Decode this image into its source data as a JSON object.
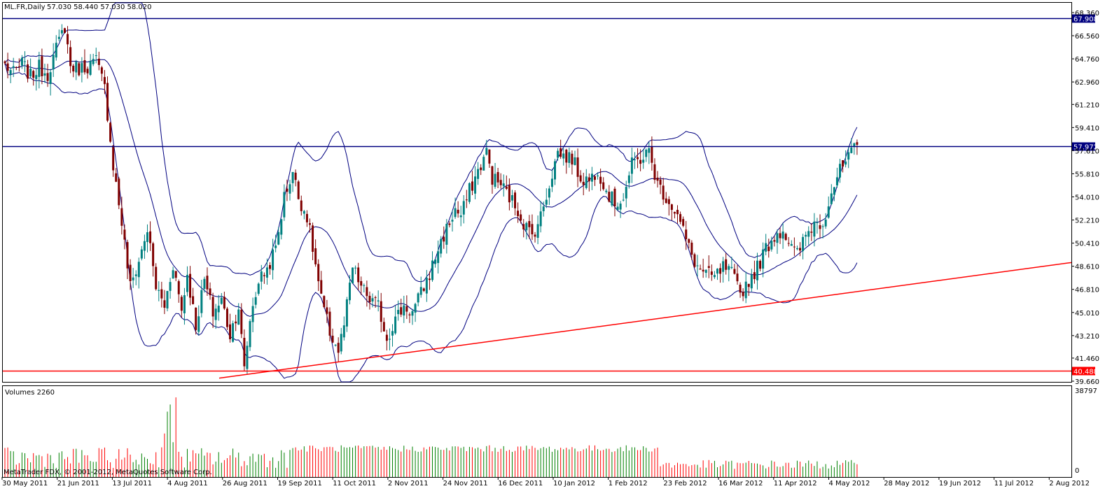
{
  "chart_data": {
    "type": "candlestick",
    "platform": "MetaTrader 4",
    "symbol_title": "ML.FR,Daily",
    "ohlc_readout": "57.030 58.440 57.030 58.020",
    "volume_title": "Volumes 2260",
    "copyright": "MetaTrader FDX, © 2001-2012, MetaQuotes Software Corp.",
    "price_axis": {
      "range": [
        39.66,
        69.5
      ],
      "ticks": [
        "68.360",
        "66.560",
        "64.760",
        "62.960",
        "61.210",
        "59.410",
        "57.610",
        "55.810",
        "54.010",
        "52.210",
        "50.410",
        "48.610",
        "46.810",
        "45.010",
        "43.210",
        "41.460",
        "39.660"
      ]
    },
    "volume_axis": {
      "range": [
        0,
        38797
      ],
      "ticks": [
        "38797",
        "0"
      ]
    },
    "date_axis": {
      "labels": [
        "30 May 2011",
        "21 Jun 2011",
        "13 Jul 2011",
        "4 Aug 2011",
        "26 Aug 2011",
        "19 Sep 2011",
        "11 Oct 2011",
        "2 Nov 2011",
        "24 Nov 2011",
        "16 Dec 2011",
        "10 Jan 2012",
        "1 Feb 2012",
        "23 Feb 2012",
        "16 Mar 2012",
        "11 Apr 2012",
        "4 May 2012",
        "28 May 2012",
        "19 Jun 2012",
        "11 Jul 2012",
        "2 Aug 2012"
      ]
    },
    "horizontal_levels": [
      {
        "value": 67.908,
        "label": "67.908",
        "color": "#000080"
      },
      {
        "value": 57.972,
        "label": "57.972",
        "color": "#000080"
      },
      {
        "value": 40.488,
        "label": "40.488",
        "color": "#ff0000"
      }
    ],
    "trendline": {
      "color": "#ff0000",
      "from": {
        "date": "19 Sep 2011",
        "price": 39.9
      },
      "to": {
        "date": "end",
        "price": 48.9
      }
    },
    "indicator": "Bollinger Bands",
    "colors": {
      "bull": "#008080",
      "bear": "#800000",
      "band": "#000080",
      "vol_up": "#008000",
      "vol_down": "#ff0000"
    },
    "close_anchors": [
      [
        0,
        64.3
      ],
      [
        8,
        63.6
      ],
      [
        16,
        64.4
      ],
      [
        24,
        63.4
      ],
      [
        32,
        64.1
      ],
      [
        40,
        63.6
      ],
      [
        48,
        65.5
      ],
      [
        56,
        67.3
      ],
      [
        64,
        64.2
      ],
      [
        72,
        64.0
      ],
      [
        80,
        64.2
      ],
      [
        88,
        64.6
      ],
      [
        96,
        62.5
      ],
      [
        104,
        56.5
      ],
      [
        112,
        52.0
      ],
      [
        120,
        47.0
      ],
      [
        128,
        49.0
      ],
      [
        136,
        51.5
      ],
      [
        144,
        47.0
      ],
      [
        152,
        45.5
      ],
      [
        160,
        48.8
      ],
      [
        168,
        45.2
      ],
      [
        176,
        48.0
      ],
      [
        184,
        44.0
      ],
      [
        192,
        47.5
      ],
      [
        200,
        45.0
      ],
      [
        208,
        46.0
      ],
      [
        216,
        43.3
      ],
      [
        224,
        45.5
      ],
      [
        230,
        40.5
      ],
      [
        236,
        44.5
      ],
      [
        244,
        47.5
      ],
      [
        252,
        48.4
      ],
      [
        260,
        50.0
      ],
      [
        268,
        54.0
      ],
      [
        276,
        56.0
      ],
      [
        280,
        54.0
      ],
      [
        288,
        52.5
      ],
      [
        296,
        50.0
      ],
      [
        304,
        46.0
      ],
      [
        312,
        43.5
      ],
      [
        318,
        42.0
      ],
      [
        326,
        44.0
      ],
      [
        334,
        48.5
      ],
      [
        342,
        47.0
      ],
      [
        350,
        46.0
      ],
      [
        358,
        45.5
      ],
      [
        366,
        43.0
      ],
      [
        374,
        44.5
      ],
      [
        382,
        45.5
      ],
      [
        390,
        45.0
      ],
      [
        398,
        46.5
      ],
      [
        406,
        48.0
      ],
      [
        414,
        50.0
      ],
      [
        422,
        51.5
      ],
      [
        430,
        53.0
      ],
      [
        438,
        52.5
      ],
      [
        446,
        54.5
      ],
      [
        454,
        56.0
      ],
      [
        460,
        57.5
      ],
      [
        468,
        55.5
      ],
      [
        476,
        55.0
      ],
      [
        484,
        54.0
      ],
      [
        492,
        53.0
      ],
      [
        498,
        52.0
      ],
      [
        506,
        51.0
      ],
      [
        514,
        52.5
      ],
      [
        522,
        55.0
      ],
      [
        530,
        57.5
      ],
      [
        536,
        57.2
      ],
      [
        544,
        57.0
      ],
      [
        552,
        55.5
      ],
      [
        560,
        55.3
      ],
      [
        568,
        56.2
      ],
      [
        576,
        54.5
      ],
      [
        584,
        53.5
      ],
      [
        592,
        54.0
      ],
      [
        600,
        56.5
      ],
      [
        608,
        57.0
      ],
      [
        616,
        57.5
      ],
      [
        624,
        55.0
      ],
      [
        632,
        54.0
      ],
      [
        640,
        53.0
      ],
      [
        648,
        52.0
      ],
      [
        656,
        50.0
      ],
      [
        664,
        48.5
      ],
      [
        672,
        48.0
      ],
      [
        680,
        47.7
      ],
      [
        688,
        48.5
      ],
      [
        696,
        48.0
      ],
      [
        704,
        46.5
      ],
      [
        712,
        47.5
      ],
      [
        720,
        48.5
      ],
      [
        728,
        50.0
      ],
      [
        736,
        51.0
      ],
      [
        744,
        51.5
      ],
      [
        752,
        50.0
      ],
      [
        760,
        49.5
      ],
      [
        768,
        51.0
      ],
      [
        776,
        52.0
      ],
      [
        784,
        52.0
      ],
      [
        792,
        54.5
      ],
      [
        800,
        56.0
      ],
      [
        808,
        57.0
      ],
      [
        816,
        58.0
      ]
    ]
  }
}
